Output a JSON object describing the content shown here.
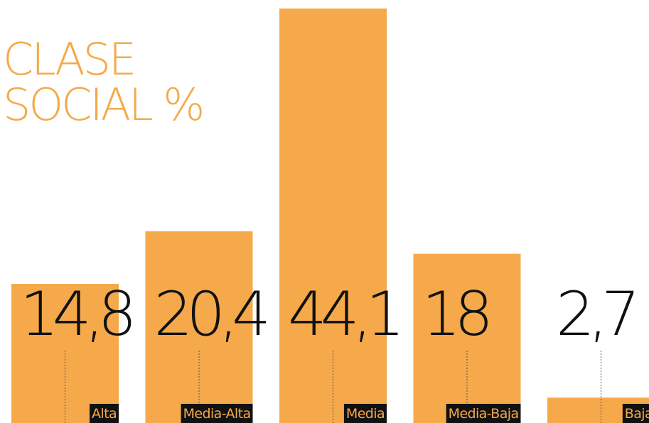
{
  "chart_data": {
    "type": "bar",
    "title_lines": [
      "CLASE",
      "SOCIAL %"
    ],
    "categories": [
      "Alta",
      "Media-Alta",
      "Media",
      "Media-Baja",
      "Baja"
    ],
    "values": [
      14.8,
      20.4,
      44.1,
      18,
      2.7
    ],
    "value_labels": [
      "14,8",
      "20,4",
      "44,1",
      "18",
      "2,7"
    ],
    "ylim": [
      0,
      44.1
    ],
    "grid": false,
    "legend": "none",
    "bar_color": "#f5a94a",
    "label_bg_color": "#111111",
    "text_color": "#111111"
  }
}
